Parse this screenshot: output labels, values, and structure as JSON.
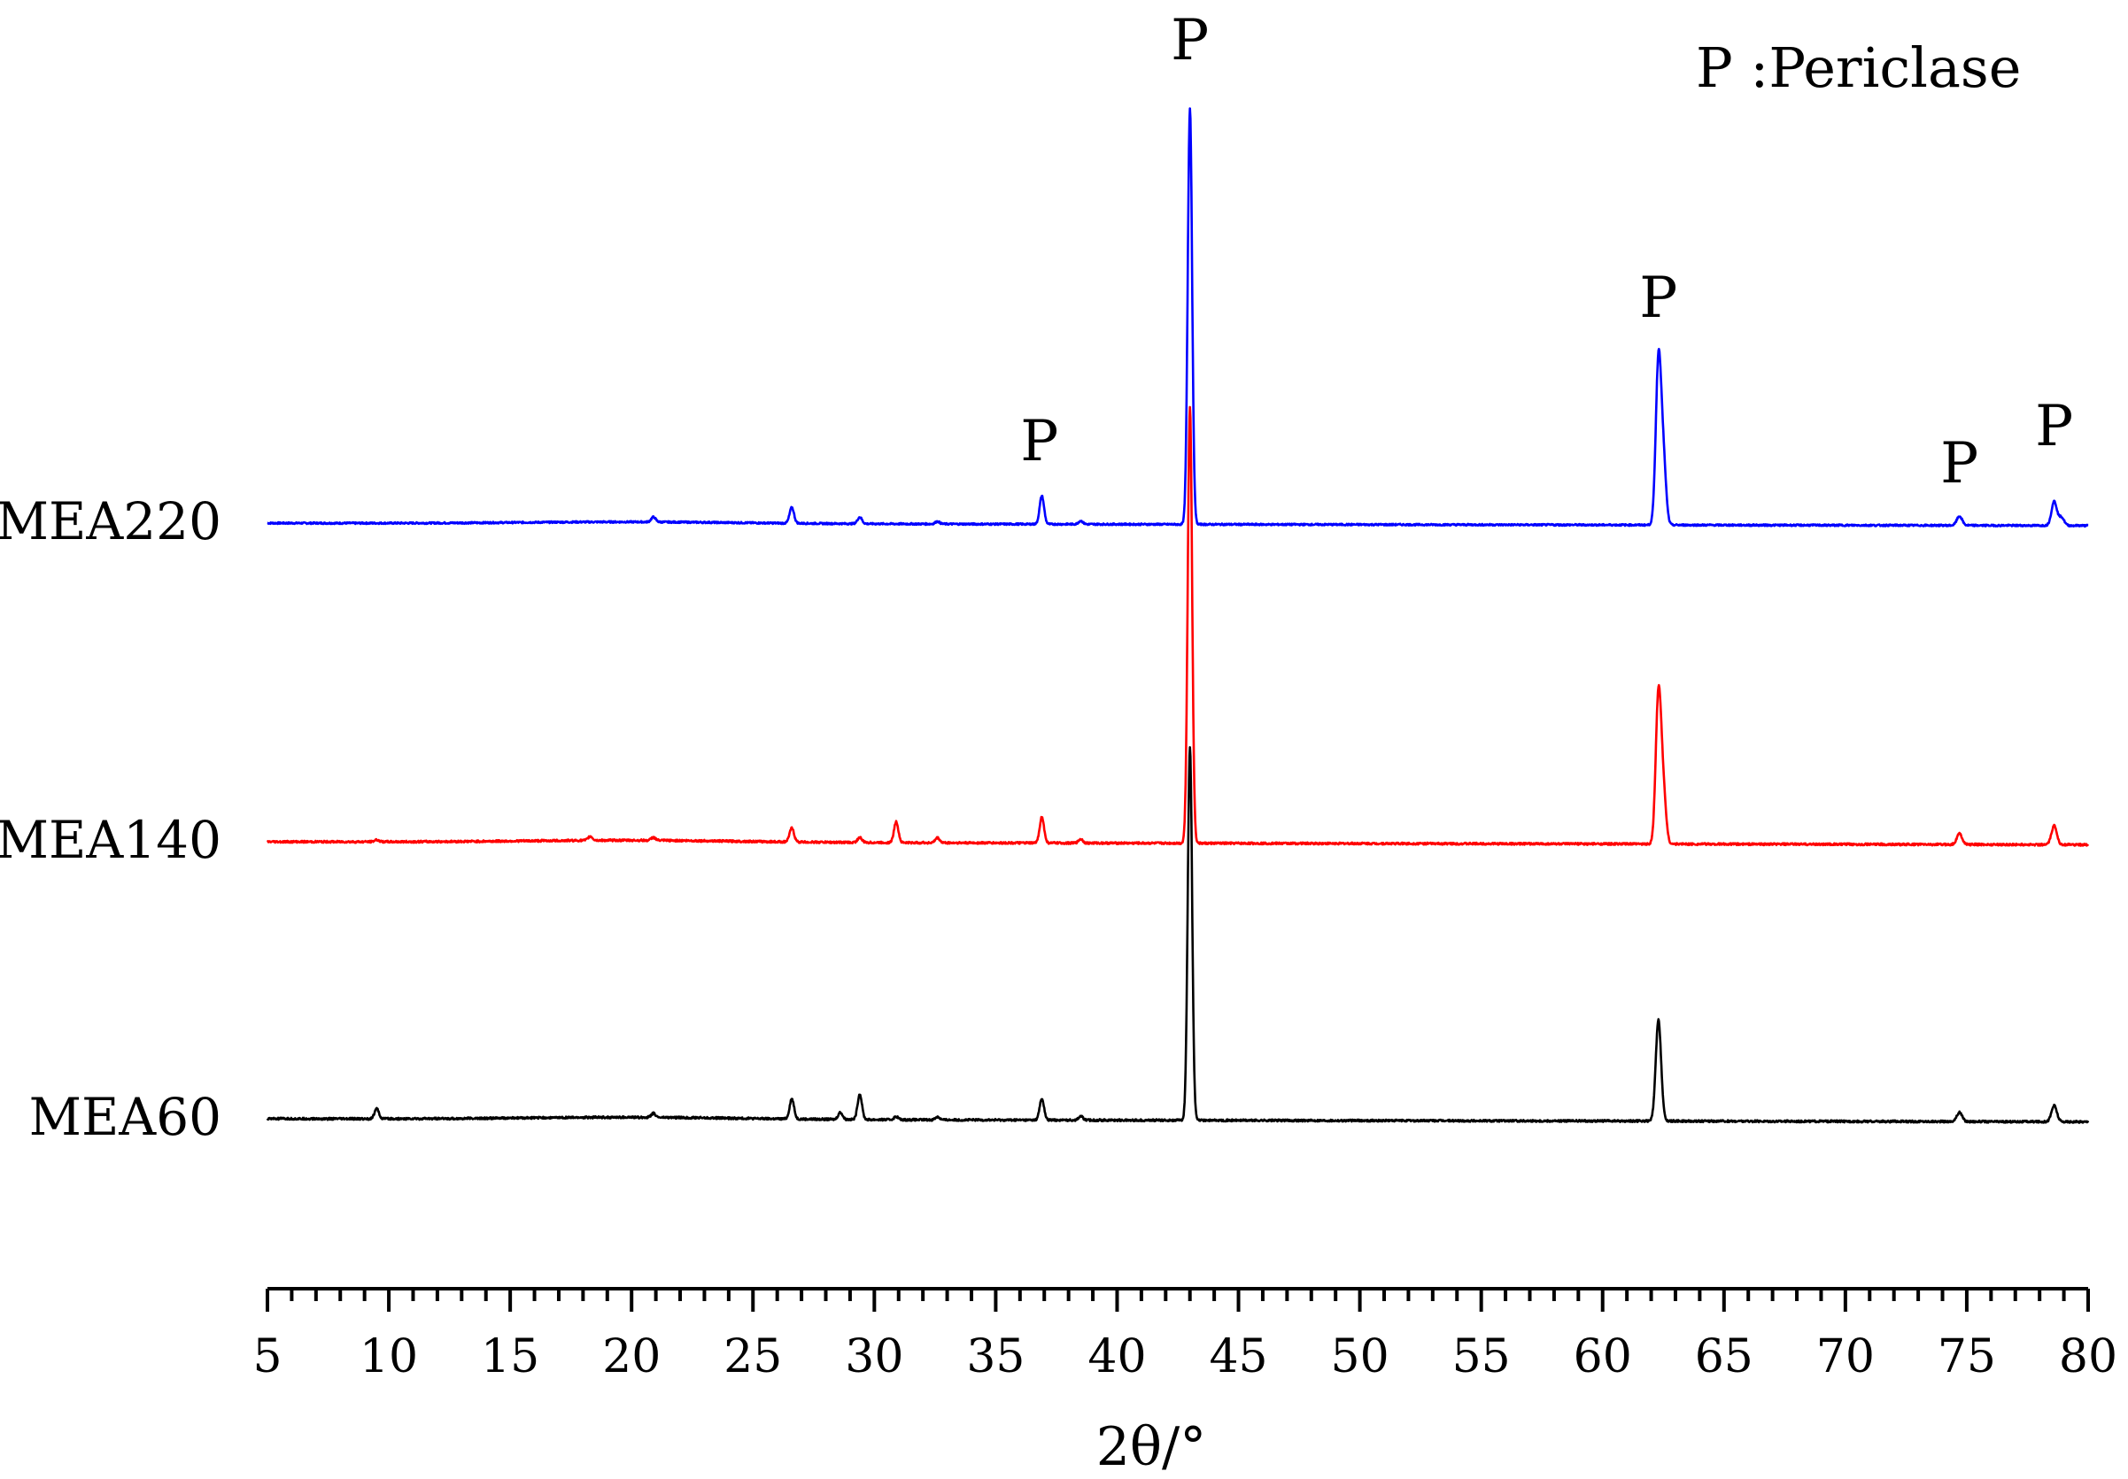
{
  "chart_data": {
    "type": "line",
    "xlabel": "2θ/°",
    "ylabel": "",
    "xlim": [
      5,
      80
    ],
    "xticks": [
      "5",
      "10",
      "15",
      "20",
      "25",
      "30",
      "35",
      "40",
      "45",
      "50",
      "55",
      "60",
      "65",
      "70",
      "75",
      "80"
    ],
    "legend_text": "P :Periclase",
    "peak_labels": [
      {
        "text": "P",
        "x": 36.8
      },
      {
        "text": "P",
        "x": 43.0
      },
      {
        "text": "P",
        "x": 62.3
      },
      {
        "text": "P",
        "x": 74.7
      },
      {
        "text": "P",
        "x": 78.6
      }
    ],
    "series": [
      {
        "name": "MEA220",
        "color": "#0000ff",
        "peaks": [
          [
            20.9,
            0.012
          ],
          [
            26.6,
            0.038
          ],
          [
            29.4,
            0.016
          ],
          [
            32.6,
            0.006
          ],
          [
            36.9,
            0.068
          ],
          [
            38.5,
            0.008
          ],
          [
            43.0,
            1.0
          ],
          [
            62.3,
            0.39
          ],
          [
            62.5,
            0.15
          ],
          [
            74.7,
            0.022
          ],
          [
            78.6,
            0.058
          ],
          [
            78.9,
            0.02
          ]
        ]
      },
      {
        "name": "MEA140",
        "color": "#ff0000",
        "peaks": [
          [
            9.5,
            0.004
          ],
          [
            18.3,
            0.008
          ],
          [
            20.9,
            0.006
          ],
          [
            26.6,
            0.028
          ],
          [
            29.4,
            0.01
          ],
          [
            30.9,
            0.042
          ],
          [
            32.6,
            0.01
          ],
          [
            36.9,
            0.052
          ],
          [
            38.5,
            0.008
          ],
          [
            43.0,
            0.88
          ],
          [
            62.3,
            0.3
          ],
          [
            62.5,
            0.1
          ],
          [
            74.7,
            0.022
          ],
          [
            78.6,
            0.038
          ]
        ]
      },
      {
        "name": "MEA60",
        "color": "#000000",
        "peaks": [
          [
            9.5,
            0.02
          ],
          [
            20.9,
            0.008
          ],
          [
            26.6,
            0.04
          ],
          [
            28.6,
            0.014
          ],
          [
            29.4,
            0.05
          ],
          [
            30.9,
            0.006
          ],
          [
            32.6,
            0.006
          ],
          [
            36.9,
            0.042
          ],
          [
            38.5,
            0.008
          ],
          [
            43.0,
            0.74
          ],
          [
            62.3,
            0.2
          ],
          [
            74.7,
            0.018
          ],
          [
            78.6,
            0.032
          ]
        ]
      }
    ]
  }
}
